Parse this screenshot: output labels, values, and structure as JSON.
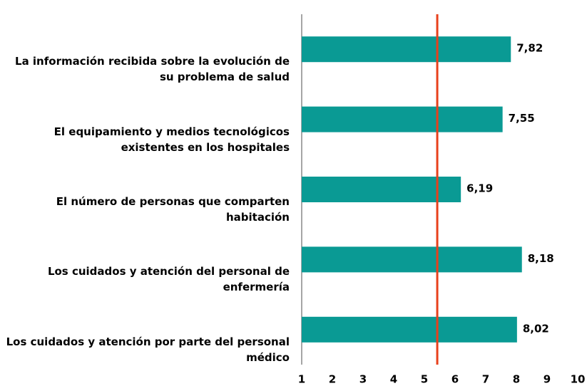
{
  "chart_data": {
    "type": "bar",
    "orientation": "horizontal",
    "categories": [
      "La información recibida sobre la evolución de su problema de salud",
      "El equipamiento y medios tecnológicos existentes en los hospitales",
      "El número de personas que comparten habitación",
      "Los cuidados y atención del personal de enfermería",
      "Los cuidados y atención por parte del personal médico"
    ],
    "values": [
      7.82,
      7.55,
      6.19,
      8.18,
      8.02
    ],
    "value_labels": [
      "7,82",
      "7,55",
      "6,19",
      "8,18",
      "8,02"
    ],
    "color": "#0a9a94",
    "xlim": [
      1,
      10
    ],
    "xticks": [
      1,
      2,
      3,
      4,
      5,
      6,
      7,
      8,
      9,
      10
    ],
    "reference_line": {
      "value": 5.42,
      "color": "#e8401c"
    }
  }
}
